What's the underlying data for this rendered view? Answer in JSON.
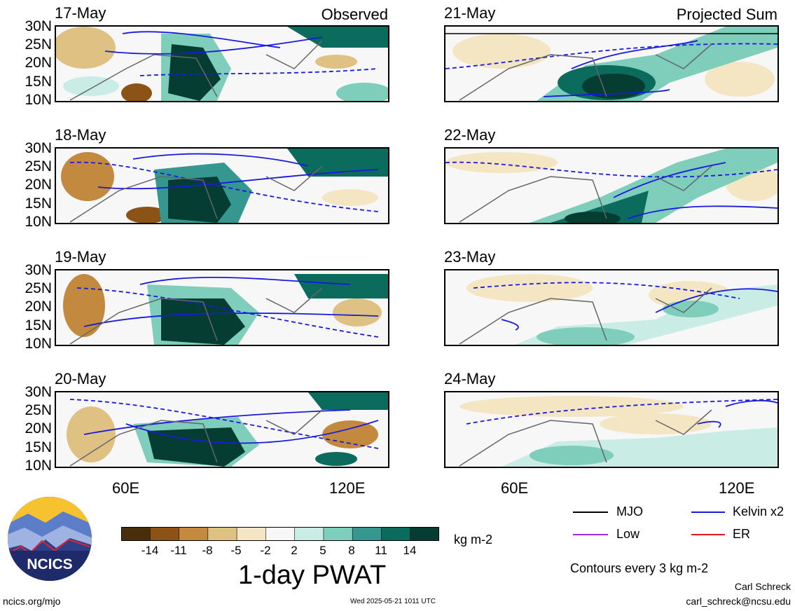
{
  "figure": {
    "variable_title": "1-day PWAT",
    "units": "kg m-2",
    "contour_note": "Contours every 3 kg m-2",
    "site": "ncics.org/mjo",
    "timestamp": "Wed 2025-05-21 1011 UTC",
    "author": "Carl Schreck",
    "email": "carl_schreck@ncsu.edu",
    "logo_text": "NCICS"
  },
  "column_headers": {
    "observed": "Observed",
    "projected": "Projected Sum"
  },
  "panels": [
    {
      "date": "17-May"
    },
    {
      "date": "18-May"
    },
    {
      "date": "19-May"
    },
    {
      "date": "20-May"
    },
    {
      "date": "21-May"
    },
    {
      "date": "22-May"
    },
    {
      "date": "23-May"
    },
    {
      "date": "24-May"
    }
  ],
  "axes": {
    "y_ticks": [
      "30N",
      "25N",
      "20N",
      "15N",
      "10N"
    ],
    "x_ticks": [
      "60E",
      "120E"
    ]
  },
  "legend": [
    {
      "label": "MJO",
      "color": "#000000"
    },
    {
      "label": "Kelvin x2",
      "color": "#1a1adf"
    },
    {
      "label": "Low",
      "color": "#9a2be0"
    },
    {
      "label": "ER",
      "color": "#e01a1a"
    }
  ],
  "colorbar": {
    "labels": [
      "-14",
      "-11",
      "-8",
      "-5",
      "-2",
      "2",
      "5",
      "8",
      "11",
      "14"
    ],
    "colors": [
      "#4a2d0a",
      "#8c5316",
      "#c38a3f",
      "#dfc283",
      "#f5e6c3",
      "#f7f7f7",
      "#c9ece4",
      "#7fcdbb",
      "#35978f",
      "#0b6b5c",
      "#053d33"
    ]
  },
  "chart_data": {
    "type": "heatmap",
    "title": "1-day PWAT",
    "units": "kg m-2",
    "lat_range": [
      "10N",
      "30N"
    ],
    "columns": [
      "Observed",
      "Projected Sum"
    ],
    "panels": [
      "17-May",
      "18-May",
      "19-May",
      "20-May",
      "21-May",
      "22-May",
      "23-May",
      "24-May"
    ],
    "contour_interval": 3,
    "filter_lines": [
      "MJO",
      "Kelvin x2",
      "Low",
      "ER"
    ]
  }
}
